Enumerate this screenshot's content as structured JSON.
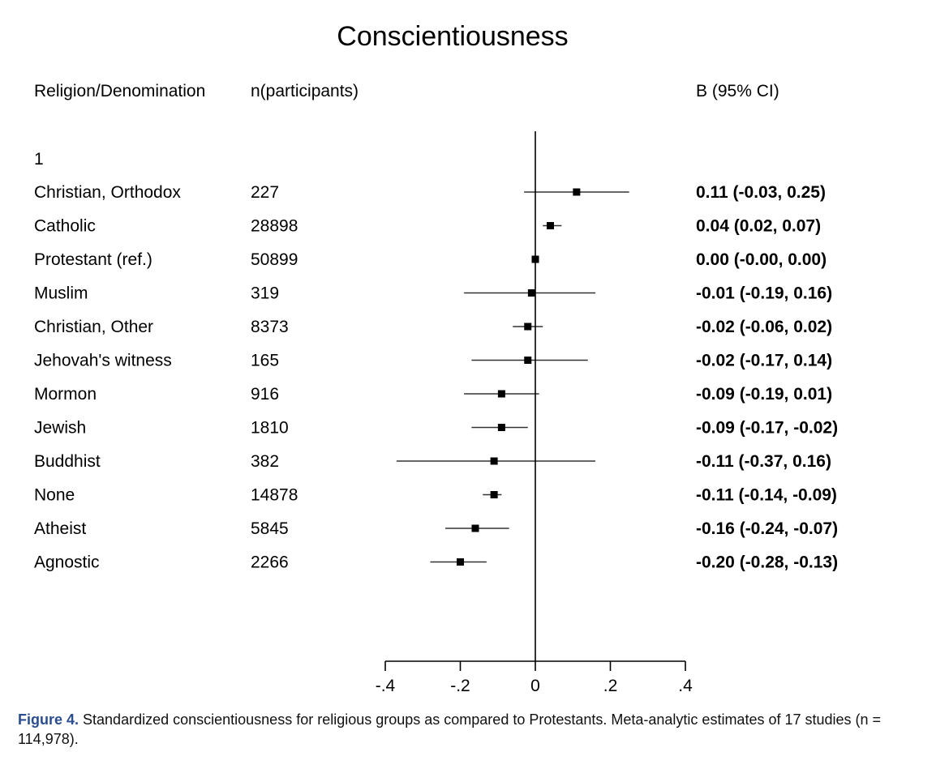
{
  "chart_data": {
    "type": "forest",
    "title": "Conscientiousness",
    "columns": {
      "group": "Religion/Denomination",
      "n": "n(participants)",
      "estimate": "B (95% CI)"
    },
    "section_label": "1",
    "xlim": [
      -0.4,
      0.4
    ],
    "xticks": [
      -0.4,
      -0.2,
      0,
      0.2,
      0.4
    ],
    "xtick_labels": [
      "-.4",
      "-.2",
      "0",
      ".2",
      ".4"
    ],
    "rows": [
      {
        "group": "Christian, Orthodox",
        "n": "227",
        "b": 0.11,
        "lo": -0.03,
        "hi": 0.25,
        "text": "0.11 (-0.03, 0.25)"
      },
      {
        "group": "Catholic",
        "n": "28898",
        "b": 0.04,
        "lo": 0.02,
        "hi": 0.07,
        "text": "0.04 (0.02, 0.07)"
      },
      {
        "group": "Protestant (ref.)",
        "n": "50899",
        "b": 0.0,
        "lo": 0.0,
        "hi": 0.0,
        "text": "0.00 (-0.00, 0.00)"
      },
      {
        "group": "Muslim",
        "n": "319",
        "b": -0.01,
        "lo": -0.19,
        "hi": 0.16,
        "text": "-0.01 (-0.19, 0.16)"
      },
      {
        "group": "Christian, Other",
        "n": "8373",
        "b": -0.02,
        "lo": -0.06,
        "hi": 0.02,
        "text": "-0.02 (-0.06, 0.02)"
      },
      {
        "group": "Jehovah's witness",
        "n": "165",
        "b": -0.02,
        "lo": -0.17,
        "hi": 0.14,
        "text": "-0.02 (-0.17, 0.14)"
      },
      {
        "group": "Mormon",
        "n": "916",
        "b": -0.09,
        "lo": -0.19,
        "hi": 0.01,
        "text": "-0.09 (-0.19, 0.01)"
      },
      {
        "group": "Jewish",
        "n": "1810",
        "b": -0.09,
        "lo": -0.17,
        "hi": -0.02,
        "text": "-0.09 (-0.17, -0.02)"
      },
      {
        "group": "Buddhist",
        "n": "382",
        "b": -0.11,
        "lo": -0.37,
        "hi": 0.16,
        "text": "-0.11 (-0.37, 0.16)"
      },
      {
        "group": "None",
        "n": "14878",
        "b": -0.11,
        "lo": -0.14,
        "hi": -0.09,
        "text": "-0.11 (-0.14, -0.09)"
      },
      {
        "group": "Atheist",
        "n": "5845",
        "b": -0.16,
        "lo": -0.24,
        "hi": -0.07,
        "text": "-0.16 (-0.24, -0.07)"
      },
      {
        "group": "Agnostic",
        "n": "2266",
        "b": -0.2,
        "lo": -0.28,
        "hi": -0.13,
        "text": "-0.20 (-0.28, -0.13)"
      }
    ]
  },
  "caption": {
    "label": "Figure 4.",
    "text": "Standardized conscientiousness for religious groups as compared to Protestants. Meta-analytic estimates of 17 studies (n = 114,978)."
  }
}
